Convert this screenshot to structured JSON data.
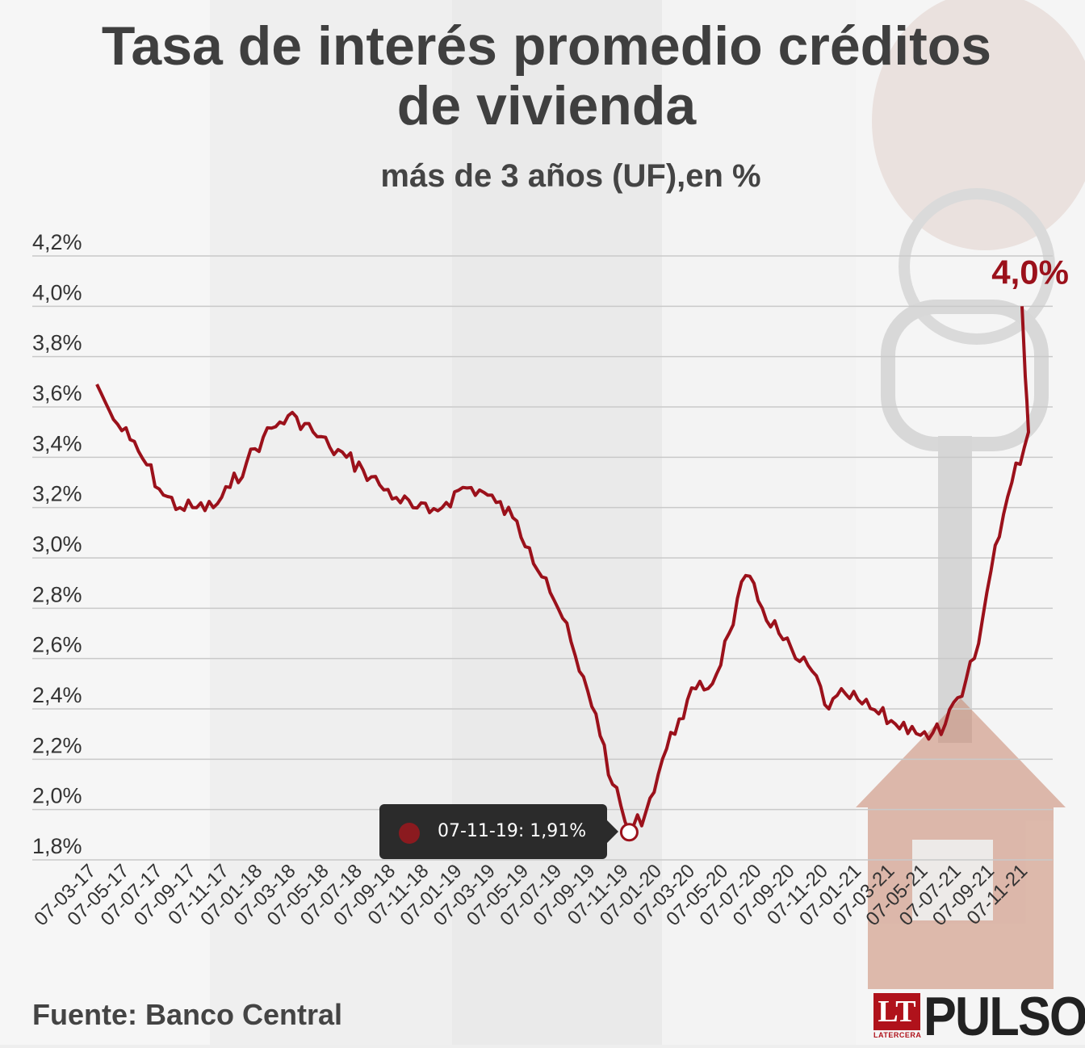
{
  "header": {
    "title_line1": "Tasa de interés promedio créditos",
    "title_line2": "de vivienda",
    "subtitle": "más de 3 años (UF),en %"
  },
  "footer": {
    "source": "Fuente: Banco Central",
    "logo_lt": "LT",
    "logo_lt_sub": "LATERCERA",
    "logo_name": "PULSO"
  },
  "annotation": {
    "last_value_label": "4,0%"
  },
  "tooltip": {
    "text": "07-11-19: 1,91%"
  },
  "colors": {
    "line": "#9b111b",
    "axis_text": "#333333",
    "grid": "#c9c9c9",
    "title": "#3f3f3f"
  },
  "chart_data": {
    "type": "line",
    "title": "Tasa de interés promedio créditos de vivienda",
    "subtitle": "más de 3 años (UF),en %",
    "ylim": [
      1.8,
      4.2
    ],
    "y_ticks": [
      1.8,
      2.0,
      2.2,
      2.4,
      2.6,
      2.8,
      3.0,
      3.2,
      3.4,
      3.6,
      3.8,
      4.0,
      4.2
    ],
    "y_tick_labels": [
      "1,8%",
      "2,0%",
      "2,2%",
      "2,4%",
      "2,6%",
      "2,8%",
      "3,0%",
      "3,2%",
      "3,4%",
      "3,6%",
      "3,8%",
      "4,0%",
      "4,2%"
    ],
    "x_tick_labels": [
      "07-03-17",
      "07-05-17",
      "07-07-17",
      "07-09-17",
      "07-11-17",
      "07-01-18",
      "07-03-18",
      "07-05-18",
      "07-07-18",
      "07-09-18",
      "07-11-18",
      "07-01-19",
      "07-03-19",
      "07-05-19",
      "07-07-19",
      "07-09-19",
      "07-11-19",
      "07-01-20",
      "07-03-20",
      "07-05-20",
      "07-07-20",
      "07-09-20",
      "07-11-20",
      "07-01-21",
      "07-03-21",
      "07-05-21",
      "07-07-21",
      "07-09-21",
      "07-11-21"
    ],
    "grid": true,
    "legend": "none",
    "series": [
      {
        "x": [
          "07-03-17",
          "07-04-17",
          "07-05-17",
          "07-06-17",
          "07-07-17",
          "07-08-17",
          "07-09-17",
          "07-10-17",
          "07-11-17",
          "07-12-17",
          "07-01-18",
          "07-02-18",
          "07-03-18",
          "07-04-18",
          "07-05-18",
          "07-06-18",
          "07-07-18",
          "07-08-18",
          "07-09-18",
          "07-10-18",
          "07-11-18",
          "07-12-18",
          "07-01-19",
          "07-02-19",
          "07-03-19",
          "07-04-19",
          "07-05-19",
          "07-06-19",
          "07-07-19",
          "07-08-19",
          "07-09-19",
          "07-10-19",
          "07-11-19",
          "07-12-19",
          "07-01-20",
          "07-02-20",
          "07-03-20",
          "07-04-20",
          "07-05-20",
          "07-06-20",
          "07-07-20",
          "07-08-20",
          "07-09-20",
          "07-10-20",
          "07-11-20",
          "07-12-20",
          "07-01-21",
          "07-02-21",
          "07-03-21",
          "07-04-21",
          "07-05-21",
          "07-06-21",
          "07-07-21",
          "07-08-21",
          "07-09-21",
          "07-10-21",
          "07-11-21",
          "07-12-21"
        ],
        "values": [
          3.69,
          3.55,
          3.47,
          3.37,
          3.25,
          3.2,
          3.2,
          3.2,
          3.28,
          3.38,
          3.48,
          3.54,
          3.56,
          3.5,
          3.44,
          3.4,
          3.35,
          3.29,
          3.24,
          3.2,
          3.18,
          3.22,
          3.28,
          3.27,
          3.22,
          3.16,
          3.04,
          2.92,
          2.76,
          2.55,
          2.38,
          2.1,
          1.91,
          1.99,
          2.2,
          2.36,
          2.48,
          2.5,
          2.7,
          2.93,
          2.8,
          2.7,
          2.6,
          2.55,
          2.4,
          2.46,
          2.42,
          2.38,
          2.34,
          2.33,
          2.28,
          2.34,
          2.45,
          2.66,
          3.05,
          3.3,
          3.5,
          4.0
        ]
      }
    ]
  }
}
